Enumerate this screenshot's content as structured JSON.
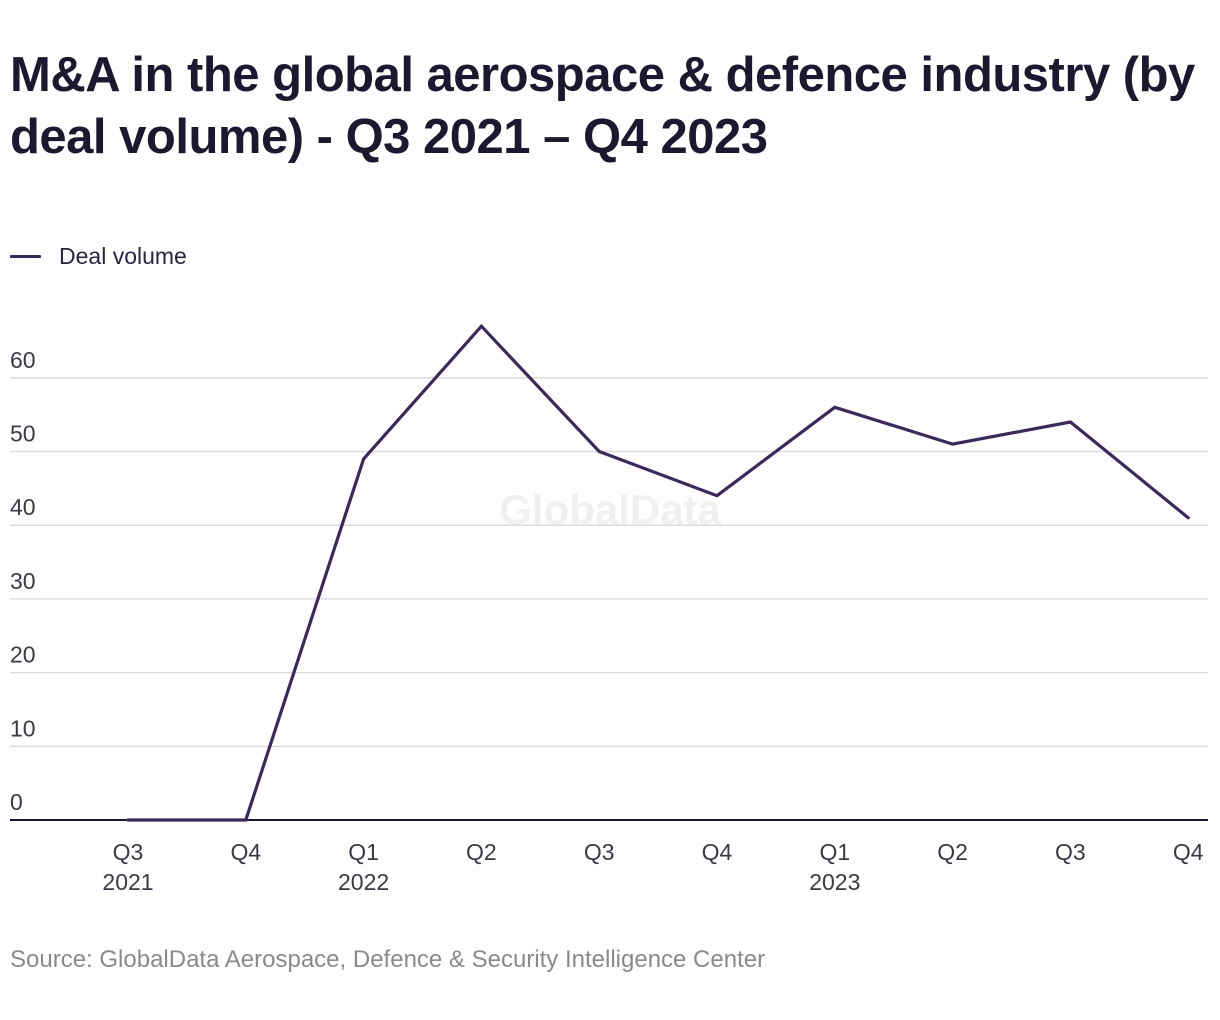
{
  "chart_data": {
    "type": "line",
    "title": "M&A in the global aerospace & defence industry (by deal volume) - Q3 2021 – Q4 2023",
    "categories": [
      {
        "quarter": "Q3",
        "year": "2021"
      },
      {
        "quarter": "Q4",
        "year": ""
      },
      {
        "quarter": "Q1",
        "year": "2022"
      },
      {
        "quarter": "Q2",
        "year": ""
      },
      {
        "quarter": "Q3",
        "year": ""
      },
      {
        "quarter": "Q4",
        "year": ""
      },
      {
        "quarter": "Q1",
        "year": "2023"
      },
      {
        "quarter": "Q2",
        "year": ""
      },
      {
        "quarter": "Q3",
        "year": ""
      },
      {
        "quarter": "Q4",
        "year": ""
      }
    ],
    "series": [
      {
        "name": "Deal volume",
        "color": "#3a2a5c",
        "values": [
          0,
          0,
          49,
          67,
          50,
          44,
          56,
          51,
          54,
          41
        ]
      }
    ],
    "yticks": [
      0,
      10,
      20,
      30,
      40,
      50,
      60
    ],
    "ylim": [
      0,
      70
    ],
    "xlabel": "",
    "ylabel": "",
    "grid": true,
    "legend": "top-left",
    "watermark": "GlobalData",
    "source": "Source: GlobalData Aerospace, Defence & Security Intelligence Center"
  }
}
